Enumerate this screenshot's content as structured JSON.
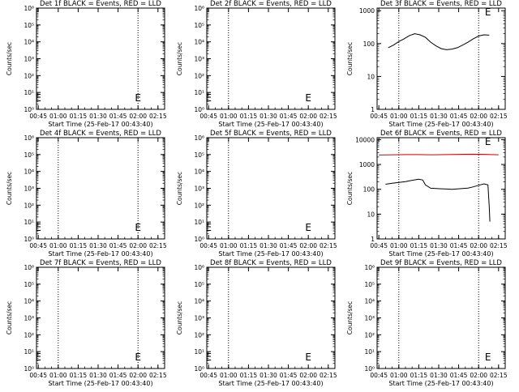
{
  "chart_data": [
    {
      "type": "line",
      "title": "Det 1f BLACK = Events, RED = LLD",
      "xlabel": "Start Time (25-Feb-17 00:43:40)",
      "ylabel": "Counts/sec",
      "scale": "log",
      "ylim": [
        1,
        1000000
      ],
      "y_ticks": [
        {
          "v": 1,
          "label": "10⁰"
        },
        {
          "v": 10,
          "label": "10¹"
        },
        {
          "v": 100,
          "label": "10²"
        },
        {
          "v": 1000,
          "label": "10³"
        },
        {
          "v": 10000,
          "label": "10⁴"
        },
        {
          "v": 100000,
          "label": "10⁵"
        },
        {
          "v": 1000000,
          "label": "10⁶"
        }
      ],
      "x_ticks": [
        "00:45",
        "01:00",
        "01:15",
        "01:30",
        "01:45",
        "02:00",
        "02:15"
      ],
      "xlim": [
        43.67,
        140
      ],
      "vlines": [
        120
      ],
      "marks": [
        {
          "t": 45,
          "label": "E"
        },
        {
          "t": 120,
          "label": "E"
        }
      ],
      "series": []
    },
    {
      "type": "line",
      "title": "Det 2f BLACK = Events, RED = LLD",
      "xlabel": "Start Time (25-Feb-17 00:43:40)",
      "ylabel": "Counts/sec",
      "scale": "log",
      "ylim": [
        1,
        1000000
      ],
      "y_ticks": [
        {
          "v": 1,
          "label": "10⁰"
        },
        {
          "v": 10,
          "label": "10¹"
        },
        {
          "v": 100,
          "label": "10²"
        },
        {
          "v": 1000,
          "label": "10³"
        },
        {
          "v": 10000,
          "label": "10⁴"
        },
        {
          "v": 100000,
          "label": "10⁵"
        },
        {
          "v": 1000000,
          "label": "10⁶"
        }
      ],
      "x_ticks": [
        "00:45",
        "01:00",
        "01:15",
        "01:30",
        "01:45",
        "02:00",
        "02:15"
      ],
      "xlim": [
        43.67,
        140
      ],
      "vlines": [
        60
      ],
      "marks": [
        {
          "t": 45,
          "label": "E"
        },
        {
          "t": 120,
          "label": "E"
        }
      ],
      "series": []
    },
    {
      "type": "line",
      "title": "Det 3f BLACK = Events, RED = LLD",
      "xlabel": "Start Time (25-Feb-17 00:43:40)",
      "ylabel": "Counts/sec",
      "scale": "log",
      "ylim": [
        1,
        1200
      ],
      "y_ticks": [
        {
          "v": 1,
          "label": "1"
        },
        {
          "v": 10,
          "label": "10"
        },
        {
          "v": 100,
          "label": "100"
        },
        {
          "v": 1000,
          "label": "1000"
        }
      ],
      "x_ticks": [
        "00:45",
        "01:00",
        "01:15",
        "01:30",
        "01:45",
        "02:00",
        "02:15"
      ],
      "xlim": [
        43.67,
        140
      ],
      "vlines": [
        60,
        120
      ],
      "marks": [
        {
          "t": 127,
          "label": "E"
        }
      ],
      "series": [
        {
          "color": "#000000",
          "x": [
            52,
            56,
            60,
            64,
            68,
            72,
            76,
            80,
            84,
            88,
            92,
            96,
            100,
            104,
            108,
            112,
            116,
            120,
            124,
            128
          ],
          "y": [
            75,
            90,
            115,
            140,
            175,
            200,
            185,
            155,
            110,
            85,
            70,
            65,
            68,
            75,
            90,
            110,
            140,
            170,
            185,
            180
          ]
        }
      ]
    },
    {
      "type": "line",
      "title": "Det 4f BLACK = Events, RED = LLD",
      "xlabel": "Start Time (25-Feb-17 00:43:40)",
      "ylabel": "Counts/sec",
      "scale": "log",
      "ylim": [
        1,
        1000000
      ],
      "y_ticks": [
        {
          "v": 1,
          "label": "10⁰"
        },
        {
          "v": 10,
          "label": "10¹"
        },
        {
          "v": 100,
          "label": "10²"
        },
        {
          "v": 1000,
          "label": "10³"
        },
        {
          "v": 10000,
          "label": "10⁴"
        },
        {
          "v": 100000,
          "label": "10⁵"
        },
        {
          "v": 1000000,
          "label": "10⁶"
        }
      ],
      "x_ticks": [
        "00:45",
        "01:00",
        "01:15",
        "01:30",
        "01:45",
        "02:00",
        "02:15"
      ],
      "xlim": [
        43.67,
        140
      ],
      "vlines": [
        60,
        120
      ],
      "marks": [
        {
          "t": 45,
          "label": "E"
        },
        {
          "t": 120,
          "label": "E"
        }
      ],
      "series": []
    },
    {
      "type": "line",
      "title": "Det 5f BLACK = Events, RED = LLD",
      "xlabel": "Start Time (25-Feb-17 00:43:40)",
      "ylabel": "Counts/sec",
      "scale": "log",
      "ylim": [
        1,
        1000000
      ],
      "y_ticks": [
        {
          "v": 1,
          "label": "10⁰"
        },
        {
          "v": 10,
          "label": "10¹"
        },
        {
          "v": 100,
          "label": "10²"
        },
        {
          "v": 1000,
          "label": "10³"
        },
        {
          "v": 10000,
          "label": "10⁴"
        },
        {
          "v": 100000,
          "label": "10⁵"
        },
        {
          "v": 1000000,
          "label": "10⁶"
        }
      ],
      "x_ticks": [
        "00:45",
        "01:00",
        "01:15",
        "01:30",
        "01:45",
        "02:00",
        "02:15"
      ],
      "xlim": [
        43.67,
        140
      ],
      "vlines": [
        60
      ],
      "marks": [
        {
          "t": 45,
          "label": "E"
        },
        {
          "t": 120,
          "label": "E"
        }
      ],
      "series": []
    },
    {
      "type": "line",
      "title": "Det 6f BLACK = Events, RED = LLD",
      "xlabel": "Start Time (25-Feb-17 00:43:40)",
      "ylabel": "Counts/sec",
      "scale": "log",
      "ylim": [
        1,
        12000
      ],
      "y_ticks": [
        {
          "v": 1,
          "label": "1"
        },
        {
          "v": 10,
          "label": "10"
        },
        {
          "v": 100,
          "label": "100"
        },
        {
          "v": 1000,
          "label": "1000"
        },
        {
          "v": 10000,
          "label": "10000"
        }
      ],
      "x_ticks": [
        "00:45",
        "01:00",
        "01:15",
        "01:30",
        "01:45",
        "02:00",
        "02:15"
      ],
      "xlim": [
        43.67,
        140
      ],
      "vlines": [
        60,
        120
      ],
      "marks": [
        {
          "t": 127,
          "label": "E"
        }
      ],
      "series": [
        {
          "color": "#cc0000",
          "x": [
            45,
            55,
            65,
            75,
            85,
            95,
            105,
            115,
            125,
            135
          ],
          "y": [
            2400,
            2450,
            2500,
            2500,
            2450,
            2500,
            2550,
            2600,
            2550,
            2450
          ]
        },
        {
          "color": "#000000",
          "x": [
            50,
            55,
            60,
            65,
            70,
            75,
            78,
            80,
            84,
            88,
            92,
            96,
            100,
            104,
            108,
            112,
            116,
            120,
            124,
            127,
            128,
            128.5
          ],
          "y": [
            160,
            175,
            190,
            205,
            230,
            255,
            235,
            150,
            110,
            108,
            105,
            102,
            100,
            104,
            108,
            112,
            125,
            145,
            165,
            150,
            20,
            5
          ]
        }
      ]
    },
    {
      "type": "line",
      "title": "Det 7f BLACK = Events, RED = LLD",
      "xlabel": "Start Time (25-Feb-17 00:43:40)",
      "ylabel": "Counts/sec",
      "scale": "log",
      "ylim": [
        1,
        1000000
      ],
      "y_ticks": [
        {
          "v": 1,
          "label": "10⁰"
        },
        {
          "v": 10,
          "label": "10¹"
        },
        {
          "v": 100,
          "label": "10²"
        },
        {
          "v": 1000,
          "label": "10³"
        },
        {
          "v": 10000,
          "label": "10⁴"
        },
        {
          "v": 100000,
          "label": "10⁵"
        },
        {
          "v": 1000000,
          "label": "10⁶"
        }
      ],
      "x_ticks": [
        "00:45",
        "01:00",
        "01:15",
        "01:30",
        "01:45",
        "02:00",
        "02:15"
      ],
      "xlim": [
        43.67,
        140
      ],
      "vlines": [
        60,
        120
      ],
      "marks": [
        {
          "t": 45,
          "label": "E"
        },
        {
          "t": 120,
          "label": "E"
        }
      ],
      "series": []
    },
    {
      "type": "line",
      "title": "Det 8f BLACK = Events, RED = LLD",
      "xlabel": "Start Time (25-Feb-17 00:43:40)",
      "ylabel": "Counts/sec",
      "scale": "log",
      "ylim": [
        1,
        1000000
      ],
      "y_ticks": [
        {
          "v": 1,
          "label": "10⁰"
        },
        {
          "v": 10,
          "label": "10¹"
        },
        {
          "v": 100,
          "label": "10²"
        },
        {
          "v": 1000,
          "label": "10³"
        },
        {
          "v": 10000,
          "label": "10⁴"
        },
        {
          "v": 100000,
          "label": "10⁵"
        },
        {
          "v": 1000000,
          "label": "10⁶"
        }
      ],
      "x_ticks": [
        "00:45",
        "01:00",
        "01:15",
        "01:30",
        "01:45",
        "02:00",
        "02:15"
      ],
      "xlim": [
        43.67,
        140
      ],
      "vlines": [
        60
      ],
      "marks": [
        {
          "t": 45,
          "label": "E"
        },
        {
          "t": 120,
          "label": "E"
        }
      ],
      "series": []
    },
    {
      "type": "line",
      "title": "Det 9f BLACK = Events, RED = LLD",
      "xlabel": "Start Time (25-Feb-17 00:43:40)",
      "ylabel": "Counts/sec",
      "scale": "log",
      "ylim": [
        1,
        1000000
      ],
      "y_ticks": [
        {
          "v": 1,
          "label": "10⁰"
        },
        {
          "v": 10,
          "label": "10¹"
        },
        {
          "v": 100,
          "label": "10²"
        },
        {
          "v": 1000,
          "label": "10³"
        },
        {
          "v": 10000,
          "label": "10⁴"
        },
        {
          "v": 100000,
          "label": "10⁵"
        },
        {
          "v": 1000000,
          "label": "10⁶"
        }
      ],
      "x_ticks": [
        "00:45",
        "01:00",
        "01:15",
        "01:30",
        "01:45",
        "02:00",
        "02:15"
      ],
      "xlim": [
        43.67,
        140
      ],
      "vlines": [
        60,
        120
      ],
      "marks": [
        {
          "t": 127,
          "label": "E"
        }
      ],
      "series": []
    }
  ]
}
